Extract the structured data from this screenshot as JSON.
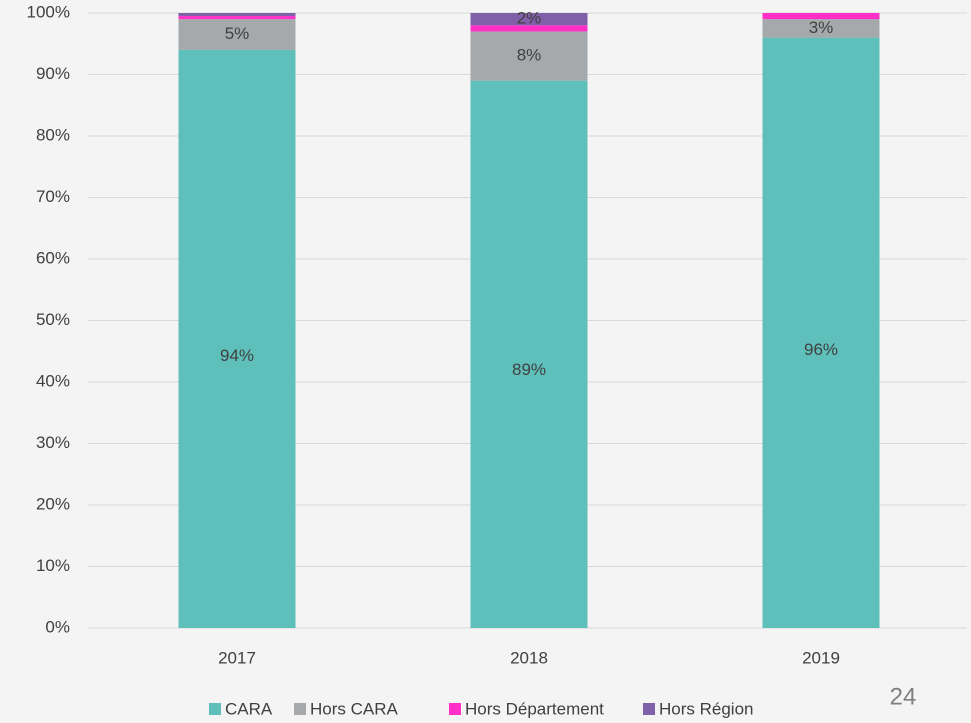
{
  "chart_data": {
    "type": "stacked_bar",
    "categories": [
      "2017",
      "2018",
      "2019"
    ],
    "series": [
      {
        "name": "CARA",
        "color": "#5fbfbb",
        "values": [
          94,
          89,
          96
        ],
        "value_labels": [
          "94%",
          "89%",
          "96%"
        ]
      },
      {
        "name": "Hors CARA",
        "color": "#a5a9ab",
        "values": [
          5,
          8,
          3
        ],
        "value_labels": [
          "5%",
          "8%",
          "3%"
        ]
      },
      {
        "name": "Hors Département",
        "color": "#ff2fc8",
        "values": [
          0.5,
          1,
          1
        ],
        "value_labels": [
          null,
          null,
          null
        ]
      },
      {
        "name": "Hors Région",
        "color": "#8060a8",
        "values": [
          0.5,
          2,
          0
        ],
        "value_labels": [
          null,
          "2%",
          null
        ]
      }
    ],
    "ylim": [
      0,
      100
    ],
    "yticks": [
      {
        "value": 0,
        "label": "0%"
      },
      {
        "value": 10,
        "label": "10%"
      },
      {
        "value": 20,
        "label": "20%"
      },
      {
        "value": 30,
        "label": "30%"
      },
      {
        "value": 40,
        "label": "40%"
      },
      {
        "value": 50,
        "label": "50%"
      },
      {
        "value": 60,
        "label": "60%"
      },
      {
        "value": 70,
        "label": "70%"
      },
      {
        "value": 80,
        "label": "80%"
      },
      {
        "value": 90,
        "label": "90%"
      },
      {
        "value": 100,
        "label": "100%"
      }
    ],
    "grid": true,
    "legend": "bottom"
  },
  "page_number": "24"
}
